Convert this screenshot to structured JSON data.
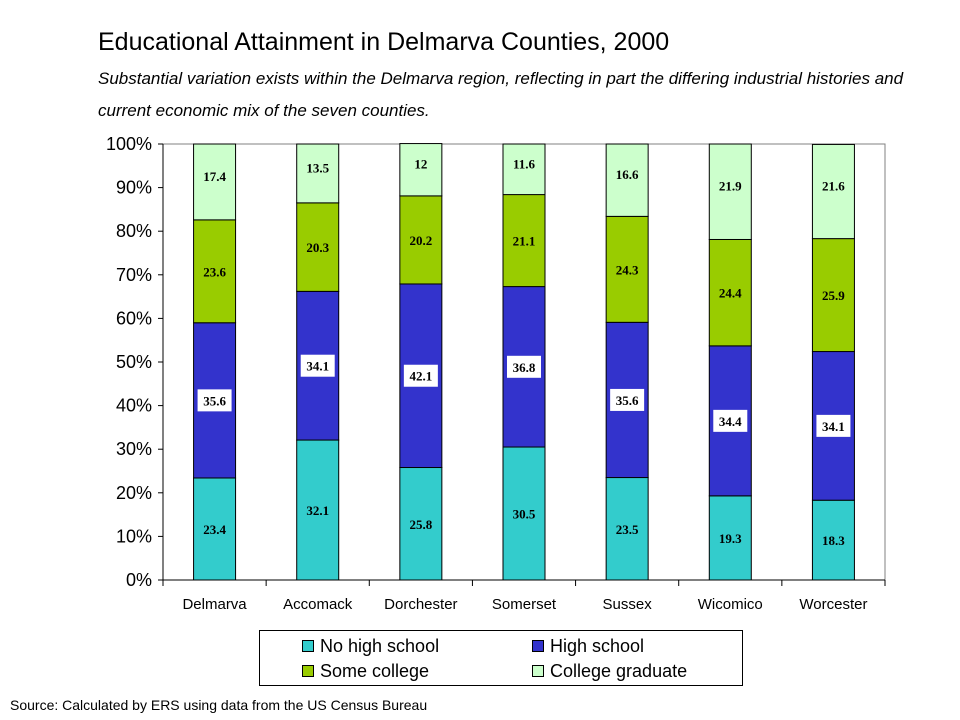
{
  "source_note": "Source:  Calculated by ERS using data from the US Census Bureau",
  "chart_data": {
    "type": "bar",
    "stacked": true,
    "percent_axis": true,
    "title": "Educational Attainment in Delmarva Counties, 2000",
    "subtitle": "Substantial variation exists within the Delmarva region, reflecting in part the differing industrial histories and current economic mix of the seven counties.",
    "xlabel": "",
    "ylabel": "",
    "ylim": [
      0,
      100
    ],
    "yticks": [
      "0%",
      "10%",
      "20%",
      "30%",
      "40%",
      "50%",
      "60%",
      "70%",
      "80%",
      "90%",
      "100%"
    ],
    "grid": false,
    "legend_position": "bottom",
    "categories": [
      "Delmarva",
      "Accomack",
      "Dorchester",
      "Somerset",
      "Sussex",
      "Wicomico",
      "Worcester"
    ],
    "series": [
      {
        "name": "No high school",
        "color": "#33cccc",
        "values": [
          23.4,
          32.1,
          25.8,
          30.5,
          23.5,
          19.3,
          18.3
        ]
      },
      {
        "name": "High school",
        "color": "#3333cc",
        "values": [
          35.6,
          34.1,
          42.1,
          36.8,
          35.6,
          34.4,
          34.1
        ]
      },
      {
        "name": "Some college",
        "color": "#99cc00",
        "values": [
          23.6,
          20.3,
          20.2,
          21.1,
          24.3,
          24.4,
          25.9
        ]
      },
      {
        "name": "College graduate",
        "color": "#ccffcc",
        "values": [
          17.4,
          13.5,
          12,
          11.6,
          16.6,
          21.9,
          21.6
        ]
      }
    ]
  }
}
